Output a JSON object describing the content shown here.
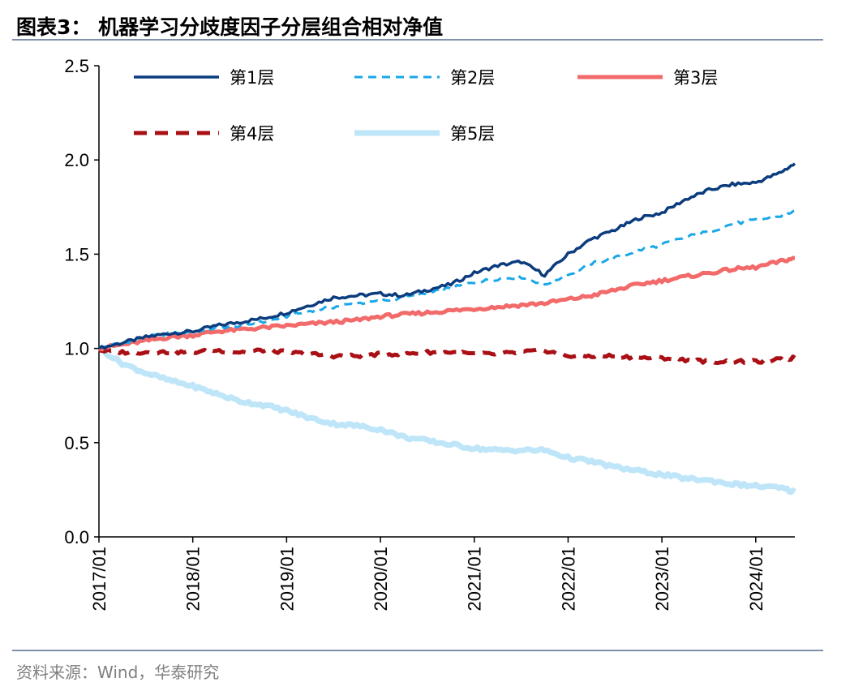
{
  "figure": {
    "title": "图表3：  机器学习分歧度因子分层组合相对净值",
    "source": "资料来源：Wind，华泰研究"
  },
  "colors": {
    "layer1": "#0b3c7e",
    "layer2": "#1aa7e8",
    "layer3": "#f26a6a",
    "layer4": "#a90f14",
    "layer5": "#bfe6f8",
    "rule": "#7f8fa9",
    "source_text": "#7f7f7f"
  },
  "chart_data": {
    "type": "line",
    "title": "图表3：  机器学习分歧度因子分层组合相对净值",
    "xlabel": "",
    "ylabel": "",
    "ylim": [
      0.0,
      2.5
    ],
    "yticks": [
      "0.0",
      "0.5",
      "1.0",
      "1.5",
      "2.0",
      "2.5"
    ],
    "xticks": [
      "2017/01",
      "2018/01",
      "2019/01",
      "2020/01",
      "2021/01",
      "2022/01",
      "2023/01",
      "2024/01"
    ],
    "x_end": "2024/06",
    "grid": false,
    "legend_position": "top",
    "x": [
      "2017/01",
      "2017/04",
      "2017/07",
      "2017/10",
      "2018/01",
      "2018/04",
      "2018/07",
      "2018/10",
      "2019/01",
      "2019/04",
      "2019/07",
      "2019/10",
      "2020/01",
      "2020/04",
      "2020/07",
      "2020/10",
      "2021/01",
      "2021/04",
      "2021/07",
      "2021/10",
      "2022/01",
      "2022/04",
      "2022/07",
      "2022/10",
      "2023/01",
      "2023/04",
      "2023/07",
      "2023/10",
      "2024/01",
      "2024/04",
      "2024/06"
    ],
    "series": [
      {
        "name": "第1层",
        "style": "solid",
        "values": [
          1.0,
          1.03,
          1.06,
          1.08,
          1.09,
          1.12,
          1.14,
          1.16,
          1.19,
          1.23,
          1.27,
          1.28,
          1.29,
          1.28,
          1.31,
          1.34,
          1.4,
          1.44,
          1.46,
          1.39,
          1.5,
          1.58,
          1.63,
          1.69,
          1.72,
          1.79,
          1.84,
          1.87,
          1.88,
          1.93,
          1.98
        ]
      },
      {
        "name": "第2层",
        "style": "dashed",
        "values": [
          1.0,
          1.03,
          1.06,
          1.08,
          1.09,
          1.11,
          1.12,
          1.14,
          1.17,
          1.2,
          1.22,
          1.24,
          1.25,
          1.27,
          1.29,
          1.32,
          1.35,
          1.37,
          1.38,
          1.34,
          1.39,
          1.45,
          1.48,
          1.52,
          1.55,
          1.59,
          1.62,
          1.66,
          1.68,
          1.7,
          1.73
        ]
      },
      {
        "name": "第3层",
        "style": "solid-thick",
        "values": [
          1.0,
          1.02,
          1.04,
          1.06,
          1.07,
          1.09,
          1.1,
          1.11,
          1.12,
          1.13,
          1.14,
          1.15,
          1.17,
          1.18,
          1.19,
          1.2,
          1.21,
          1.22,
          1.23,
          1.24,
          1.26,
          1.28,
          1.31,
          1.34,
          1.36,
          1.38,
          1.4,
          1.42,
          1.43,
          1.46,
          1.48
        ]
      },
      {
        "name": "第4层",
        "style": "dashed-thick",
        "values": [
          0.99,
          0.98,
          0.98,
          0.98,
          0.98,
          0.99,
          0.98,
          0.99,
          0.98,
          0.97,
          0.96,
          0.96,
          0.97,
          0.97,
          0.98,
          0.98,
          0.97,
          0.97,
          0.98,
          0.99,
          0.96,
          0.96,
          0.96,
          0.95,
          0.95,
          0.94,
          0.93,
          0.93,
          0.93,
          0.94,
          0.95
        ]
      },
      {
        "name": "第5层",
        "style": "solid-thick",
        "values": [
          1.0,
          0.92,
          0.87,
          0.83,
          0.8,
          0.76,
          0.72,
          0.7,
          0.67,
          0.63,
          0.6,
          0.59,
          0.57,
          0.53,
          0.51,
          0.49,
          0.47,
          0.46,
          0.46,
          0.46,
          0.42,
          0.4,
          0.37,
          0.35,
          0.33,
          0.31,
          0.3,
          0.28,
          0.27,
          0.26,
          0.24
        ]
      }
    ]
  }
}
